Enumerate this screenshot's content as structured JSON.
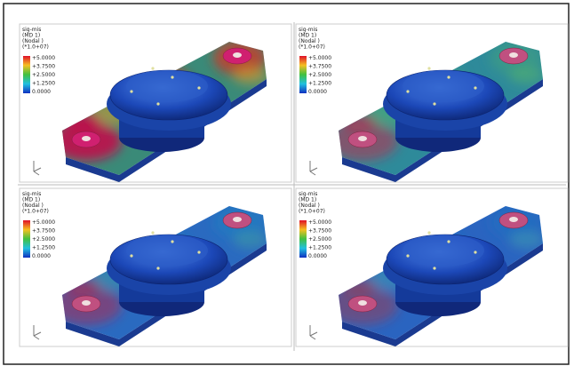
{
  "panels": [
    {
      "legend": {
        "lines": [
          "sig-mis",
          "(MD  1)",
          "(Nodal  )",
          "(*1.0+07)"
        ],
        "ticks": [
          "+5.0000",
          "+3.7500",
          "+2.5000",
          "+1.2500",
          "0.0000"
        ]
      }
    },
    {
      "legend": {
        "lines": [
          "sig-mis",
          "(MD  1)",
          "(Nodal  )",
          "(*1.0+07)"
        ],
        "ticks": [
          "+5.0000",
          "+3.7500",
          "+2.5000",
          "+1.2500",
          "0.0000"
        ]
      }
    },
    {
      "legend": {
        "lines": [
          "sig-mis",
          "(MD  1)",
          "(Nodal  )",
          "(*1.0+07)"
        ],
        "ticks": [
          "+5.0000",
          "+3.7500",
          "+2.5000",
          "+1.2500",
          "0.0000"
        ]
      }
    },
    {
      "legend": {
        "lines": [
          "sig-mis",
          "(MD  1)",
          "(Nodal  )",
          "(*1.0+07)"
        ],
        "ticks": [
          "+5.0000",
          "+3.7500",
          "+2.5000",
          "+1.2500",
          "0.0000"
        ]
      }
    }
  ]
}
